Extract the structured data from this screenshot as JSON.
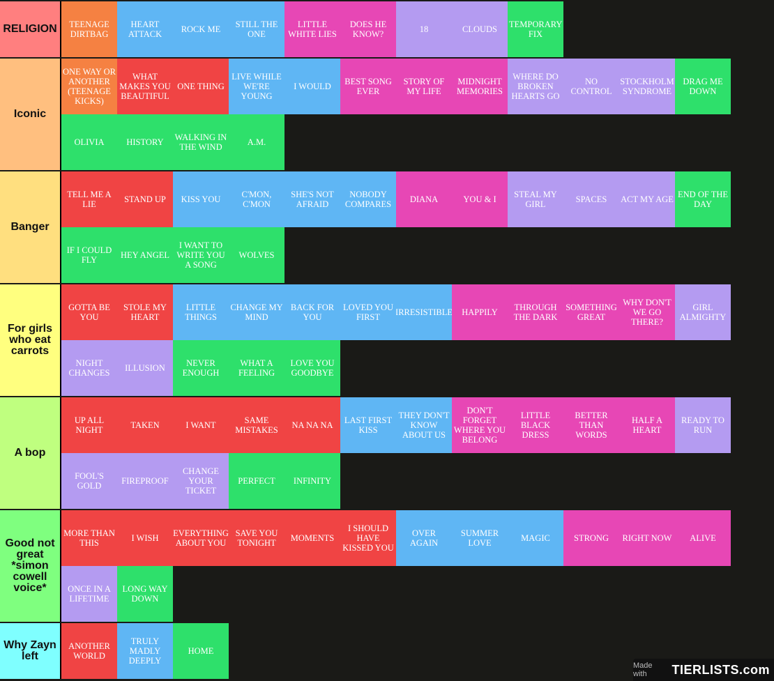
{
  "colors": {
    "orange": "#f58142",
    "red": "#f04444",
    "blue": "#5fb6f4",
    "pink": "#e747b5",
    "purple": "#b49bf1",
    "green": "#2ee06b",
    "background": "#1a1a17"
  },
  "tiers": [
    {
      "label": "RELIGION",
      "color": "#ff7f7f",
      "items": [
        {
          "text": "TEENAGE DIRTBAG",
          "color": "orange"
        },
        {
          "text": "HEART ATTACK",
          "color": "blue"
        },
        {
          "text": "ROCK ME",
          "color": "blue"
        },
        {
          "text": "STILL THE ONE",
          "color": "blue"
        },
        {
          "text": "LITTLE WHITE LIES",
          "color": "pink"
        },
        {
          "text": "DOES HE KNOW?",
          "color": "pink"
        },
        {
          "text": "18",
          "color": "purple"
        },
        {
          "text": "CLOUDS",
          "color": "purple"
        },
        {
          "text": "TEMPORARY FIX",
          "color": "green"
        }
      ]
    },
    {
      "label": "Iconic",
      "color": "#ffbf7f",
      "items": [
        {
          "text": "ONE WAY OR ANOTHER (TEENAGE KICKS)",
          "color": "orange"
        },
        {
          "text": "WHAT MAKES YOU BEAUTIFUL",
          "color": "red"
        },
        {
          "text": "ONE THING",
          "color": "red"
        },
        {
          "text": "LIVE WHILE WE'RE YOUNG",
          "color": "blue"
        },
        {
          "text": "I WOULD",
          "color": "blue"
        },
        {
          "text": "BEST SONG EVER",
          "color": "pink"
        },
        {
          "text": "STORY OF MY LIFE",
          "color": "pink"
        },
        {
          "text": "MIDNIGHT MEMORIES",
          "color": "pink"
        },
        {
          "text": "WHERE DO BROKEN HEARTS GO",
          "color": "purple"
        },
        {
          "text": "NO CONTROL",
          "color": "purple"
        },
        {
          "text": "STOCKHOLM SYNDROME",
          "color": "purple"
        },
        {
          "text": "DRAG ME DOWN",
          "color": "green"
        },
        {
          "text": "OLIVIA",
          "color": "green"
        },
        {
          "text": "HISTORY",
          "color": "green"
        },
        {
          "text": "WALKING IN THE WIND",
          "color": "green"
        },
        {
          "text": "A.M.",
          "color": "green"
        }
      ]
    },
    {
      "label": "Banger",
      "color": "#ffdf7f",
      "items": [
        {
          "text": "TELL ME A LIE",
          "color": "red"
        },
        {
          "text": "STAND UP",
          "color": "red"
        },
        {
          "text": "KISS YOU",
          "color": "blue"
        },
        {
          "text": "C'MON, C'MON",
          "color": "blue"
        },
        {
          "text": "SHE'S NOT AFRAID",
          "color": "blue"
        },
        {
          "text": "NOBODY COMPARES",
          "color": "blue"
        },
        {
          "text": "DIANA",
          "color": "pink"
        },
        {
          "text": "YOU & I",
          "color": "pink"
        },
        {
          "text": "STEAL MY GIRL",
          "color": "purple"
        },
        {
          "text": "SPACES",
          "color": "purple"
        },
        {
          "text": "ACT MY AGE",
          "color": "purple"
        },
        {
          "text": "END OF THE DAY",
          "color": "green"
        },
        {
          "text": "IF I COULD FLY",
          "color": "green"
        },
        {
          "text": "HEY ANGEL",
          "color": "green"
        },
        {
          "text": "I WANT TO WRITE YOU A SONG",
          "color": "green"
        },
        {
          "text": "WOLVES",
          "color": "green"
        }
      ]
    },
    {
      "label": "For girls who eat carrots",
      "color": "#ffff7f",
      "items": [
        {
          "text": "GOTTA BE YOU",
          "color": "red"
        },
        {
          "text": "STOLE MY HEART",
          "color": "red"
        },
        {
          "text": "LITTLE THINGS",
          "color": "blue"
        },
        {
          "text": "CHANGE MY MIND",
          "color": "blue"
        },
        {
          "text": "BACK FOR YOU",
          "color": "blue"
        },
        {
          "text": "LOVED YOU FIRST",
          "color": "blue"
        },
        {
          "text": "IRRESISTIBLE",
          "color": "blue"
        },
        {
          "text": "HAPPILY",
          "color": "pink"
        },
        {
          "text": "THROUGH THE DARK",
          "color": "pink"
        },
        {
          "text": "SOMETHING GREAT",
          "color": "pink"
        },
        {
          "text": "WHY DON'T WE GO THERE?",
          "color": "pink"
        },
        {
          "text": "GIRL ALMIGHTY",
          "color": "purple"
        },
        {
          "text": "NIGHT CHANGES",
          "color": "purple"
        },
        {
          "text": "ILLUSION",
          "color": "purple"
        },
        {
          "text": "NEVER ENOUGH",
          "color": "green"
        },
        {
          "text": "WHAT A FEELING",
          "color": "green"
        },
        {
          "text": "LOVE YOU GOODBYE",
          "color": "green"
        }
      ]
    },
    {
      "label": "A bop",
      "color": "#bfff7f",
      "items": [
        {
          "text": "UP ALL NIGHT",
          "color": "red"
        },
        {
          "text": "TAKEN",
          "color": "red"
        },
        {
          "text": "I WANT",
          "color": "red"
        },
        {
          "text": "SAME MISTAKES",
          "color": "red"
        },
        {
          "text": "NA NA NA",
          "color": "red"
        },
        {
          "text": "LAST FIRST KISS",
          "color": "blue"
        },
        {
          "text": "THEY DON'T KNOW ABOUT US",
          "color": "blue"
        },
        {
          "text": "DON'T FORGET WHERE YOU BELONG",
          "color": "pink"
        },
        {
          "text": "LITTLE BLACK DRESS",
          "color": "pink"
        },
        {
          "text": "BETTER THAN WORDS",
          "color": "pink"
        },
        {
          "text": "HALF A HEART",
          "color": "pink"
        },
        {
          "text": "READY TO RUN",
          "color": "purple"
        },
        {
          "text": "FOOL'S GOLD",
          "color": "purple"
        },
        {
          "text": "FIREPROOF",
          "color": "purple"
        },
        {
          "text": "CHANGE YOUR TICKET",
          "color": "purple"
        },
        {
          "text": "PERFECT",
          "color": "green"
        },
        {
          "text": "INFINITY",
          "color": "green"
        }
      ]
    },
    {
      "label": "Good not great *simon cowell voice*",
      "color": "#7fff7f",
      "items": [
        {
          "text": "MORE THAN THIS",
          "color": "red"
        },
        {
          "text": "I WISH",
          "color": "red"
        },
        {
          "text": "EVERYTHING ABOUT YOU",
          "color": "red"
        },
        {
          "text": "SAVE YOU TONIGHT",
          "color": "red"
        },
        {
          "text": "MOMENTS",
          "color": "red"
        },
        {
          "text": "I SHOULD HAVE KISSED YOU",
          "color": "red"
        },
        {
          "text": "OVER AGAIN",
          "color": "blue"
        },
        {
          "text": "SUMMER LOVE",
          "color": "blue"
        },
        {
          "text": "MAGIC",
          "color": "blue"
        },
        {
          "text": "STRONG",
          "color": "pink"
        },
        {
          "text": "RIGHT NOW",
          "color": "pink"
        },
        {
          "text": "ALIVE",
          "color": "pink"
        },
        {
          "text": "ONCE IN A LIFETIME",
          "color": "purple"
        },
        {
          "text": "LONG WAY DOWN",
          "color": "green"
        }
      ]
    },
    {
      "label": "Why Zayn left",
      "color": "#7fffff",
      "items": [
        {
          "text": "ANOTHER WORLD",
          "color": "red"
        },
        {
          "text": "TRULY MADLY DEEPLY",
          "color": "blue"
        },
        {
          "text": "HOME",
          "color": "green"
        }
      ]
    }
  ],
  "watermark": {
    "made_with": "Made with",
    "brand": "TIERLISTS.com"
  }
}
